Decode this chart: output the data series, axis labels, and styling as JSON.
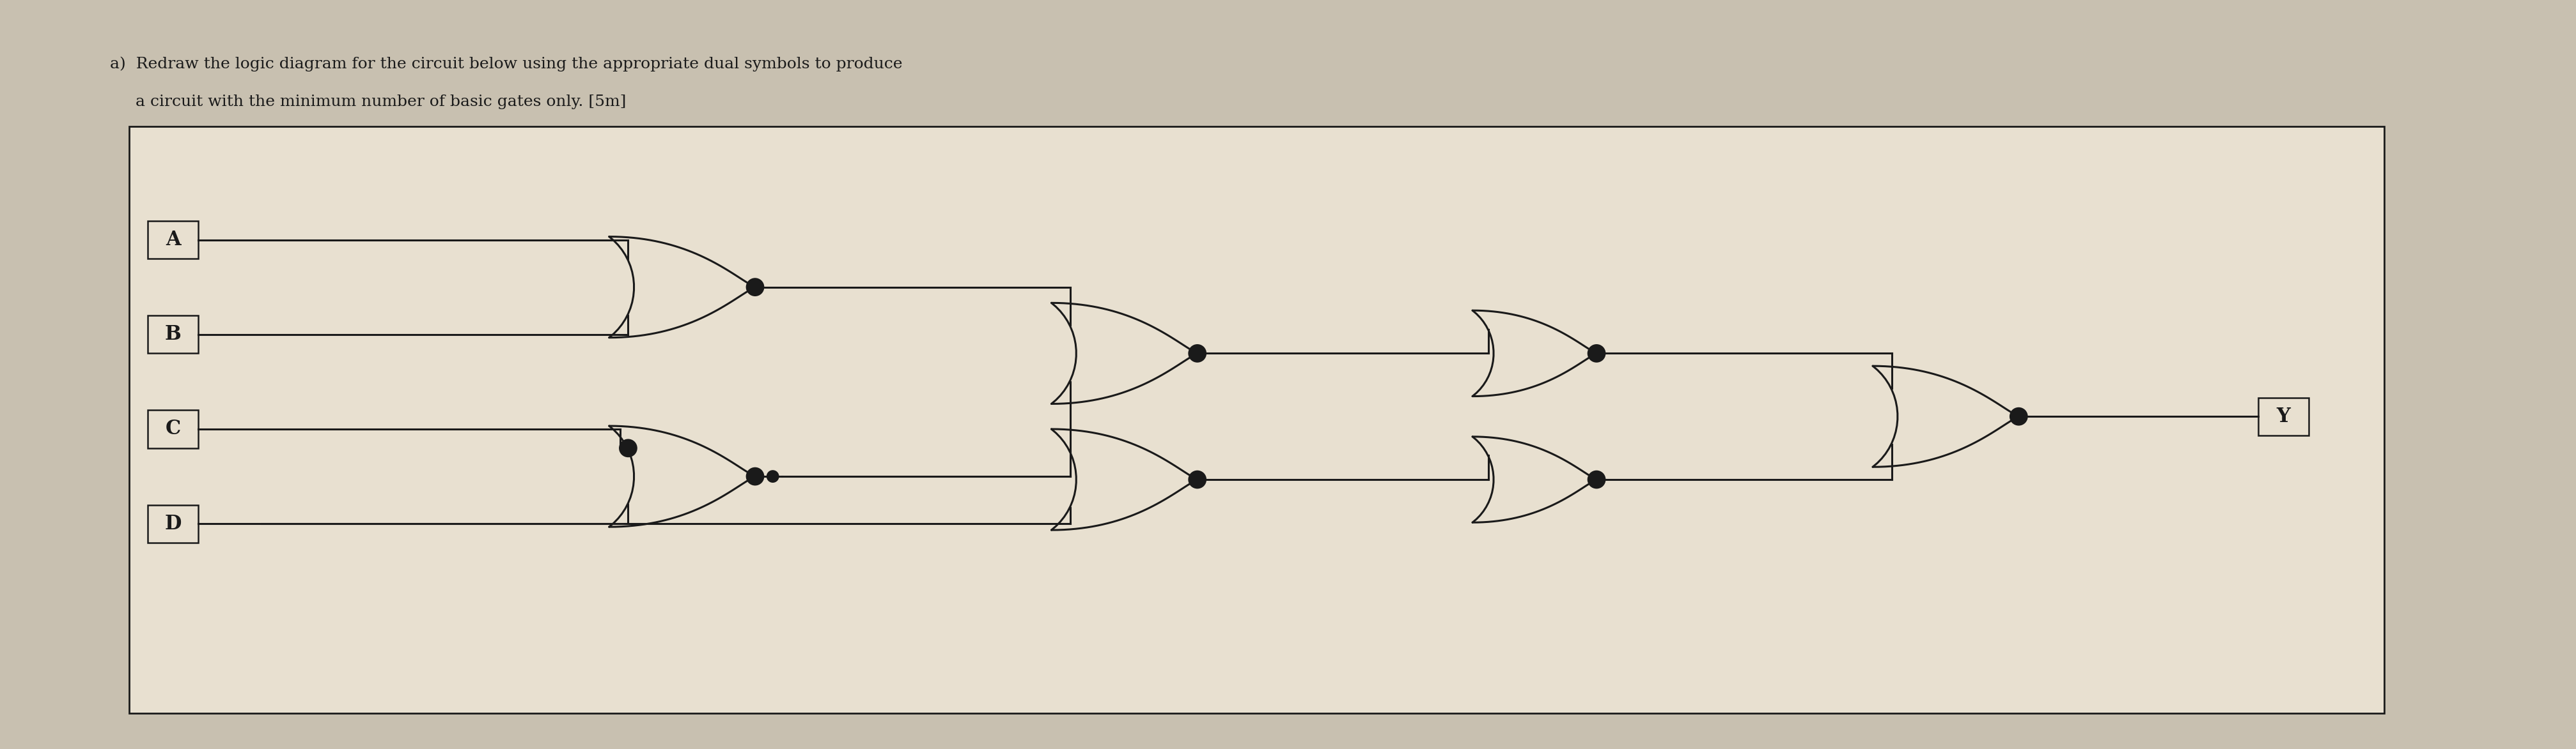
{
  "title_line1": "a)  Redraw the logic diagram for the circuit below using the appropriate dual symbols to produce",
  "title_line2": "     a circuit with the minimum number of basic gates only. [5m]",
  "bg_color": "#c8c0b0",
  "box_bg": "#e8e0d0",
  "text_color": "#1a1a1a",
  "inputs": [
    "A",
    "B",
    "C",
    "D"
  ],
  "output_label": "Y"
}
